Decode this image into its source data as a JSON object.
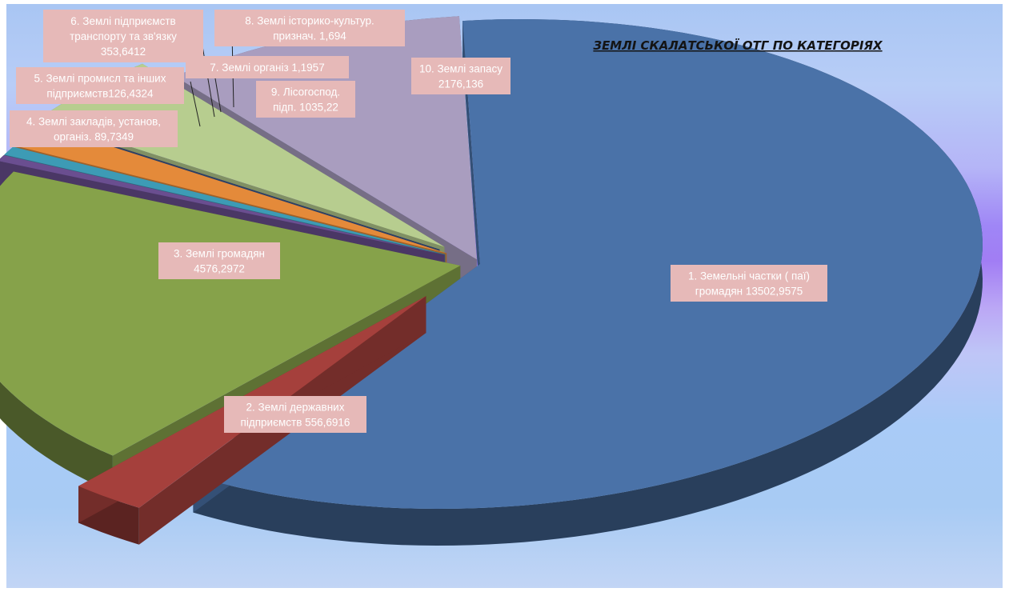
{
  "chart_data": {
    "type": "pie",
    "style": "3d-exploded",
    "title": "ЗЕМЛІ СКАЛАТСЬКОЇ ОТГ  ПО КАТЕГОРІЯХ",
    "slices": [
      {
        "label": "1. Земельні частки ( паї) громадян 13502,9575",
        "lines": [
          "1. Земельні частки ( паї)",
          "громадян 13502,9575"
        ],
        "value": 13502.9575,
        "color": "#4a72a8"
      },
      {
        "label": "2. Землі державних підприємств 556,6916",
        "lines": [
          "2. Землі державних",
          "підприємств 556,6916"
        ],
        "value": 556.6916,
        "color": "#a5403c"
      },
      {
        "label": "3. Землі громадян 4576,2972",
        "lines": [
          "3. Землі громадян",
          "4576,2972"
        ],
        "value": 4576.2972,
        "color": "#86a24a"
      },
      {
        "label": "4. Землі закладів, установ, організ. 89,7349",
        "lines": [
          "4. Землі закладів, установ,",
          "організ. 89,7349"
        ],
        "value": 89.7349,
        "color": "#6a4e90"
      },
      {
        "label": "5. Землі промисл та інших підприємств126,4324",
        "lines": [
          "5. Землі промисл та інших",
          "підприємств126,4324"
        ],
        "value": 126.4324,
        "color": "#3d9bb5"
      },
      {
        "label": "6. Землі підприємств транспорту та зв'язку 353,6412",
        "lines": [
          "6. Землі підприємств",
          "транспорту та зв'язку",
          "353,6412"
        ],
        "value": 353.6412,
        "color": "#e48a3a"
      },
      {
        "label": "7. Землі організ 1,1957",
        "lines": [
          "7. Землі організ 1,1957"
        ],
        "value": 1.1957,
        "color": "#3c5d93"
      },
      {
        "label": "8. Землі історико-культур. признач. 1,694",
        "lines": [
          "8. Землі  історико-культур.",
          "признач. 1,694"
        ],
        "value": 1.694,
        "color": "#9c3f3c"
      },
      {
        "label": "9. Лісогоспод. підп. 1035,22",
        "lines": [
          "9. Лісогоспод.",
          "підп. 1035,22"
        ],
        "value": 1035.22,
        "color": "#b7cd8f"
      },
      {
        "label": "10. Землі запасу 2176,136",
        "lines": [
          "10. Землі запасу",
          "2176,136"
        ],
        "value": 2176.136,
        "color": "#a99dbf"
      }
    ],
    "legend": "none",
    "data_labels": "callouts"
  }
}
